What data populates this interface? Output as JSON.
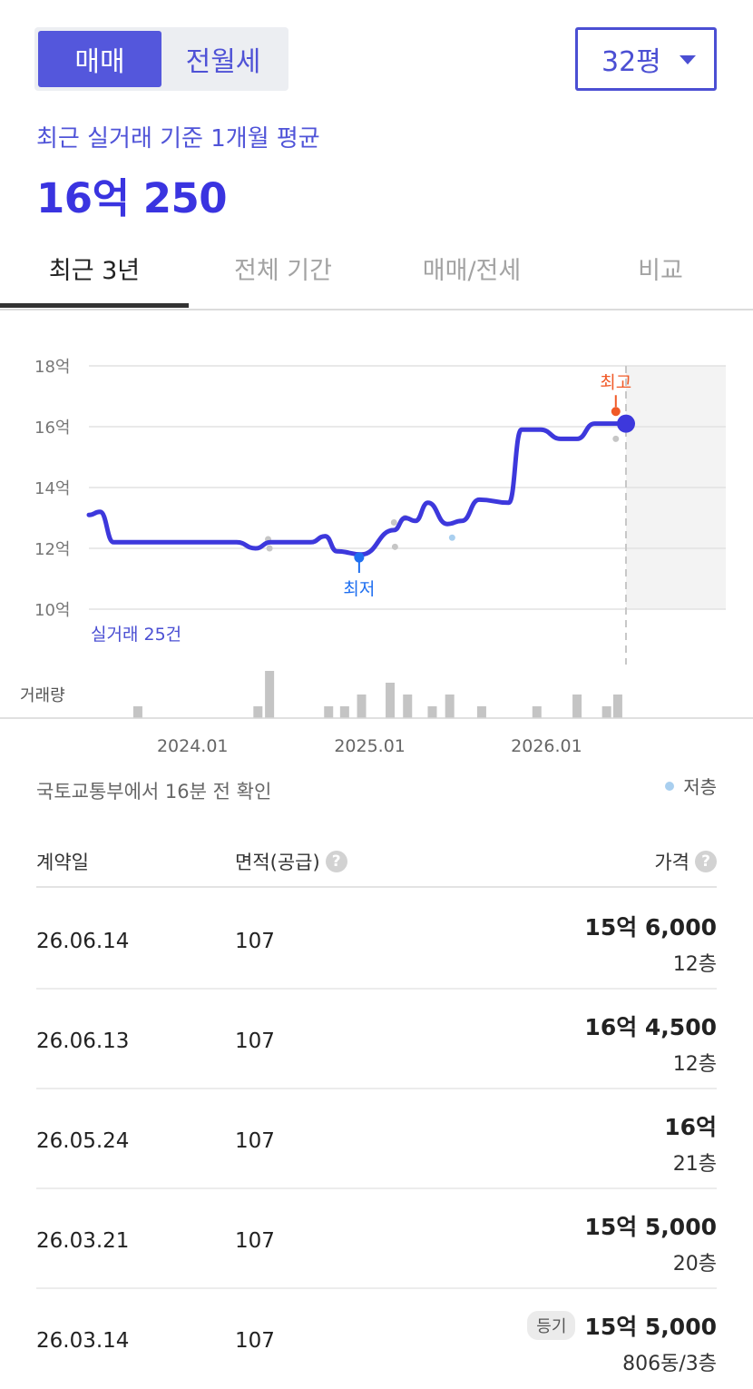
{
  "segment": {
    "sale": "매매",
    "rent": "전월세",
    "active": "sale"
  },
  "area_select": {
    "value": "32평"
  },
  "summary": {
    "caption": "최근 실거래 기준 1개월 평균",
    "value": "16억 250"
  },
  "tabs": [
    "최근 3년",
    "전체 기간",
    "매매/전세",
    "비교"
  ],
  "chart_data": {
    "type": "line",
    "y_unit": "억",
    "ylim": [
      10,
      18
    ],
    "y_ticks": [
      "18억",
      "16억",
      "14억",
      "12억",
      "10억"
    ],
    "y_tick_values": [
      18,
      16,
      14,
      12,
      10
    ],
    "x_ticks": [
      "2024.01",
      "2025.01",
      "2026.01"
    ],
    "x_tick_dates": [
      "2024-01-01",
      "2025-01-01",
      "2026-01-01"
    ],
    "x_range": [
      "2023-06-01",
      "2026-06-14"
    ],
    "future_shade_from": "2026-06-14",
    "trend": {
      "color": "#3d38dc",
      "points": [
        [
          "2023-06-01",
          13.1
        ],
        [
          "2023-06-24",
          13.2
        ],
        [
          "2023-07-22",
          12.2
        ],
        [
          "2023-09-15",
          12.2
        ],
        [
          "2024-02-01",
          12.2
        ],
        [
          "2024-04-01",
          12.2
        ],
        [
          "2024-05-10",
          12.0
        ],
        [
          "2024-06-10",
          12.2
        ],
        [
          "2024-09-01",
          12.2
        ],
        [
          "2024-10-01",
          12.4
        ],
        [
          "2024-10-25",
          11.9
        ],
        [
          "2024-12-15",
          11.8
        ],
        [
          "2025-02-20",
          12.6
        ],
        [
          "2025-03-15",
          13.0
        ],
        [
          "2025-04-05",
          12.9
        ],
        [
          "2025-05-01",
          13.5
        ],
        [
          "2025-06-10",
          12.8
        ],
        [
          "2025-07-10",
          12.9
        ],
        [
          "2025-08-15",
          13.6
        ],
        [
          "2025-10-15",
          13.5
        ],
        [
          "2025-11-10",
          15.9
        ],
        [
          "2025-12-20",
          15.9
        ],
        [
          "2026-01-30",
          15.6
        ],
        [
          "2026-03-05",
          15.6
        ],
        [
          "2026-04-10",
          16.1
        ],
        [
          "2026-06-14",
          16.1
        ]
      ]
    },
    "transactions": [
      [
        "2024-06-05",
        12.3,
        "normal"
      ],
      [
        "2024-06-08",
        12.0,
        "normal"
      ],
      [
        "2025-02-20",
        12.85,
        "normal"
      ],
      [
        "2025-02-22",
        12.05,
        "normal"
      ],
      [
        "2025-03-15",
        13.0,
        "normal"
      ],
      [
        "2025-06-20",
        12.35,
        "low"
      ],
      [
        "2026-05-24",
        15.6,
        "normal"
      ]
    ],
    "max_marker": {
      "label": "최고",
      "date": "2026-05-24",
      "value": 16.5,
      "color": "#f05a28"
    },
    "min_marker": {
      "label": "최저",
      "date": "2024-12-10",
      "value": 11.7,
      "color": "#1f6ff0"
    },
    "current_marker": {
      "date": "2026-06-14",
      "value": 16.1
    },
    "count_label": "실거래 25건",
    "volume": {
      "label": "거래량",
      "bars": [
        [
          "2023-09-10",
          1
        ],
        [
          "2024-05-15",
          1
        ],
        [
          "2024-06-08",
          4
        ],
        [
          "2024-10-08",
          1
        ],
        [
          "2024-11-10",
          1
        ],
        [
          "2024-12-15",
          2
        ],
        [
          "2025-02-12",
          3
        ],
        [
          "2025-03-20",
          2
        ],
        [
          "2025-05-10",
          1
        ],
        [
          "2025-06-15",
          2
        ],
        [
          "2025-08-20",
          1
        ],
        [
          "2025-12-12",
          1
        ],
        [
          "2026-03-05",
          2
        ],
        [
          "2026-05-05",
          1
        ],
        [
          "2026-05-28",
          2
        ]
      ]
    }
  },
  "source_note": "국토교통부에서 16분 전 확인",
  "legend": {
    "low_floor": "저층"
  },
  "table": {
    "headers": {
      "date": "계약일",
      "area": "면적(공급)",
      "price": "가격"
    },
    "rows": [
      {
        "date": "26.06.14",
        "area": "107",
        "price": "15억 6,000",
        "floor": "12층",
        "badge": ""
      },
      {
        "date": "26.06.13",
        "area": "107",
        "price": "16억 4,500",
        "floor": "12층",
        "badge": ""
      },
      {
        "date": "26.05.24",
        "area": "107",
        "price": "16억",
        "floor": "21층",
        "badge": ""
      },
      {
        "date": "26.03.21",
        "area": "107",
        "price": "15억 5,000",
        "floor": "20층",
        "badge": ""
      },
      {
        "date": "26.03.14",
        "area": "107",
        "price": "15억 5,000",
        "floor": "806동/3층",
        "badge": "등기"
      }
    ]
  },
  "icons": {
    "dropdown": "caret-down-icon",
    "help": "question-circle-icon"
  }
}
